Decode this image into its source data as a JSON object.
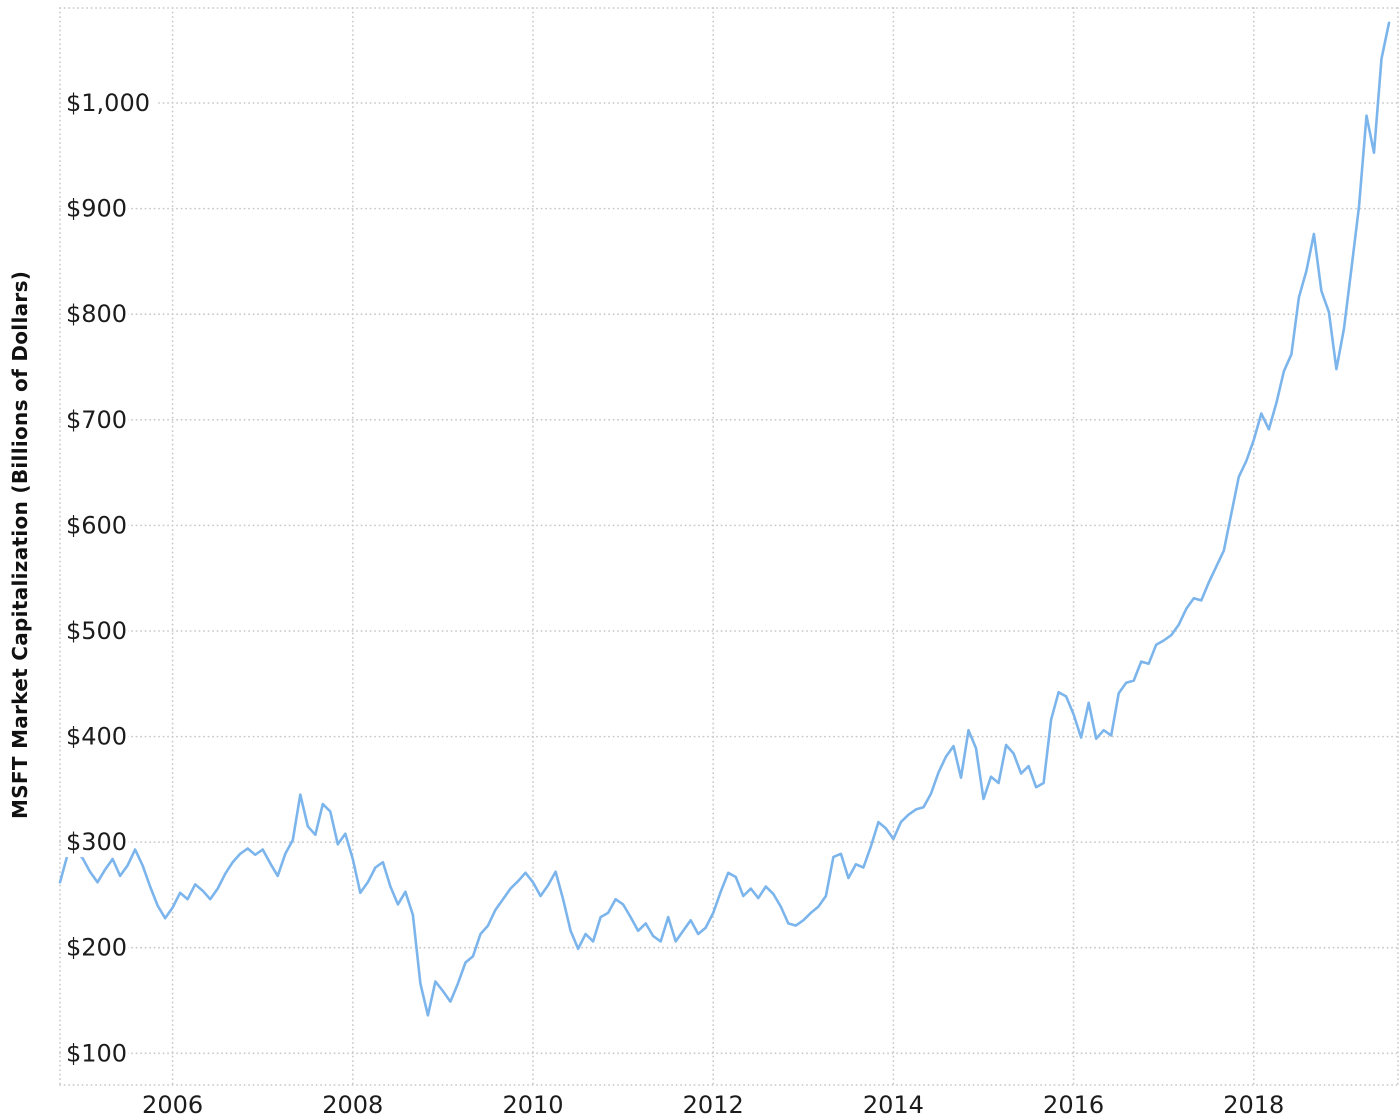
{
  "chart_data": {
    "type": "line",
    "title": "",
    "xlabel": "",
    "ylabel": "MSFT Market Capitalization (Billions of Dollars)",
    "legend": "none",
    "grid": true,
    "grid_style": "dotted",
    "line_color": "#7cb5ec",
    "grid_color": "#c9c9c9",
    "text_color": "#1c1c1c",
    "background_color": "#ffffff",
    "xlim": [
      2004.75,
      2019.6
    ],
    "ylim": [
      70,
      1090
    ],
    "x_ticks": [
      2006,
      2008,
      2010,
      2012,
      2014,
      2016,
      2018
    ],
    "x_tick_labels": [
      "2006",
      "2008",
      "2010",
      "2012",
      "2014",
      "2016",
      "2018"
    ],
    "y_ticks": [
      100,
      200,
      300,
      400,
      500,
      600,
      700,
      800,
      900,
      1000
    ],
    "y_tick_labels": [
      "$100",
      "$200",
      "$300",
      "$400",
      "$500",
      "$600",
      "$700",
      "$800",
      "$900",
      "$1,000"
    ],
    "series": [
      {
        "name": "MSFT Market Capitalization (Billions of Dollars)",
        "x_start_year": 2004,
        "x_start_month": 10,
        "frequency": "monthly",
        "values": [
          262,
          288,
          292,
          285,
          272,
          262,
          274,
          284,
          268,
          278,
          293,
          278,
          258,
          240,
          228,
          238,
          252,
          246,
          260,
          254,
          246,
          256,
          270,
          281,
          289,
          294,
          288,
          293,
          280,
          268,
          289,
          302,
          345,
          315,
          307,
          336,
          329,
          298,
          308,
          284,
          252,
          262,
          276,
          281,
          258,
          241,
          253,
          231,
          166,
          136,
          168,
          159,
          149,
          166,
          186,
          192,
          213,
          221,
          236,
          246,
          256,
          263,
          271,
          262,
          249,
          259,
          272,
          246,
          216,
          199,
          213,
          206,
          229,
          233,
          246,
          241,
          229,
          216,
          223,
          211,
          206,
          229,
          206,
          216,
          226,
          213,
          219,
          233,
          253,
          271,
          267,
          249,
          256,
          247,
          258,
          251,
          239,
          223,
          221,
          226,
          233,
          239,
          249,
          286,
          289,
          266,
          279,
          276,
          296,
          319,
          313,
          303,
          319,
          326,
          331,
          333,
          346,
          366,
          381,
          391,
          361,
          406,
          389,
          341,
          362,
          356,
          392,
          384,
          365,
          372,
          352,
          356,
          416,
          442,
          438,
          421,
          399,
          432,
          398,
          406,
          401,
          441,
          451,
          453,
          471,
          469,
          487,
          491,
          496,
          506,
          521,
          531,
          529,
          546,
          561,
          576,
          611,
          646,
          661,
          681,
          706,
          691,
          716,
          746,
          762,
          816,
          841,
          876,
          822,
          802,
          748,
          786,
          843,
          902,
          988,
          953,
          1042,
          1076
        ]
      }
    ]
  }
}
